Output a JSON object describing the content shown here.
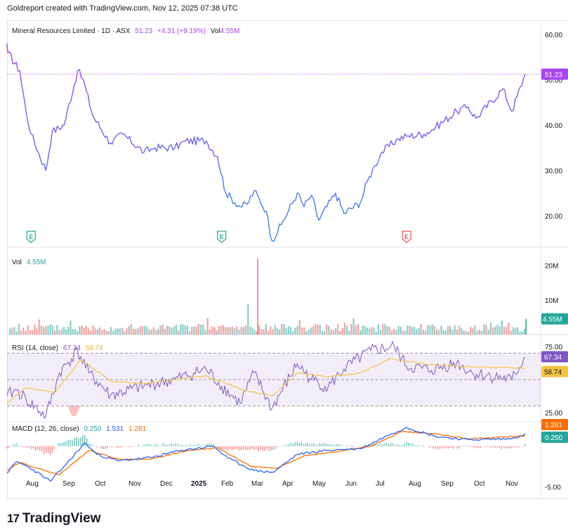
{
  "header": {
    "title": "Goldreport created with TradingView.com, Nov 12, 2025 07:38 UTC"
  },
  "brand": {
    "name": "TradingView",
    "logo_glyph": "17"
  },
  "colors": {
    "price_start": "#b33cf5",
    "price_end": "#2f8ee5",
    "last_price_bg": "#a845ef",
    "vol_up": "#26a69a",
    "vol_down": "#ef5350",
    "rsi_line": "#7e57c2",
    "rsi_ma": "#f6c343",
    "macd_line": "#2962ff",
    "signal_line": "#ff6d00",
    "earnings_teal": "#26a69a",
    "earnings_red": "#ef5350"
  },
  "main": {
    "legend": {
      "symbol": "Mineral Resources Limited · 1D · ASX",
      "price": "51.23",
      "change": "+4.31 (+9.19%)",
      "vol_label": "Vol",
      "vol_value": "4.55M"
    },
    "last_price_label": "51.23"
  },
  "volume": {
    "label": "Vol",
    "value": "4.55M",
    "axis_last": "4.55M"
  },
  "rsi": {
    "label": "RSI (14, close)",
    "value": "67.34",
    "ma_value": "58.74",
    "axis_rsi": "67.34",
    "axis_ma": "58.74"
  },
  "macd": {
    "label": "MACD (12, 26, close)",
    "hist_value": "0.250",
    "macd_value": "1.531",
    "signal_value": "1.281",
    "axis_signal": "1.281",
    "axis_hist": "0.250"
  },
  "chart_data": {
    "type": "line",
    "title": "Mineral Resources Limited · 1D · ASX",
    "x_labels": [
      "Aug",
      "Sep",
      "Oct",
      "Nov",
      "Dec",
      "2025",
      "Feb",
      "Mar",
      "Apr",
      "May",
      "Jun",
      "Jul",
      "Aug",
      "Sep",
      "Oct",
      "Nov"
    ],
    "price": {
      "ylim": [
        13,
        62
      ],
      "y_ticks": [
        "60.00",
        "50.00",
        "40.00",
        "30.00",
        "20.00"
      ],
      "y_tick_values": [
        60,
        50,
        40,
        30,
        20
      ],
      "series": [
        {
          "d": "Jul 22",
          "v": 58.0
        },
        {
          "d": "Jul 31",
          "v": 56.0
        },
        {
          "d": "Aug 10",
          "v": 52.0
        },
        {
          "d": "Aug 20",
          "v": 43.0
        },
        {
          "d": "Aug 28",
          "v": 38.0
        },
        {
          "d": "Sep 5",
          "v": 30.0
        },
        {
          "d": "Sep 12",
          "v": 38.5
        },
        {
          "d": "Sep 25",
          "v": 40.0
        },
        {
          "d": "Oct 1",
          "v": 52.0
        },
        {
          "d": "Oct 8",
          "v": 50.0
        },
        {
          "d": "Oct 20",
          "v": 42.0
        },
        {
          "d": "Nov 1",
          "v": 36.0
        },
        {
          "d": "Nov 15",
          "v": 38.0
        },
        {
          "d": "Dec 1",
          "v": 34.0
        },
        {
          "d": "Dec 15",
          "v": 35.0
        },
        {
          "d": "Jan 1",
          "v": 35.0
        },
        {
          "d": "Jan 15",
          "v": 36.5
        },
        {
          "d": "Feb 1",
          "v": 36.5
        },
        {
          "d": "Feb 15",
          "v": 33.0
        },
        {
          "d": "Feb 25",
          "v": 25.0
        },
        {
          "d": "Mar 5",
          "v": 22.0
        },
        {
          "d": "Mar 15",
          "v": 22.5
        },
        {
          "d": "Mar 25",
          "v": 25.5
        },
        {
          "d": "Apr 1",
          "v": 21.0
        },
        {
          "d": "Apr 8",
          "v": 14.5
        },
        {
          "d": "Apr 20",
          "v": 18.0
        },
        {
          "d": "May 1",
          "v": 25.0
        },
        {
          "d": "May 10",
          "v": 22.0
        },
        {
          "d": "May 20",
          "v": 24.5
        },
        {
          "d": "May 30",
          "v": 19.0
        },
        {
          "d": "Jun 10",
          "v": 25.0
        },
        {
          "d": "Jun 20",
          "v": 20.5
        },
        {
          "d": "Jul 1",
          "v": 23.0
        },
        {
          "d": "Jul 10",
          "v": 27.5
        },
        {
          "d": "Jul 20",
          "v": 31.0
        },
        {
          "d": "Jul 30",
          "v": 34.0
        },
        {
          "d": "Aug 10",
          "v": 37.0
        },
        {
          "d": "Aug 20",
          "v": 37.5
        },
        {
          "d": "Sep 1",
          "v": 38.0
        },
        {
          "d": "Sep 15",
          "v": 39.5
        },
        {
          "d": "Oct 1",
          "v": 43.0
        },
        {
          "d": "Oct 15",
          "v": 44.0
        },
        {
          "d": "Oct 25",
          "v": 41.5
        },
        {
          "d": "Nov 1",
          "v": 48.0
        },
        {
          "d": "Nov 5",
          "v": 43.0
        },
        {
          "d": "Nov 11",
          "v": 51.23
        }
      ],
      "earnings_markers": [
        {
          "d": "Aug 28",
          "label": "E",
          "kind": "teal"
        },
        {
          "d": "Feb 20",
          "label": "E",
          "kind": "teal"
        },
        {
          "d": "Aug 20",
          "label": "E",
          "kind": "red"
        }
      ]
    },
    "volume": {
      "y_ticks": [
        "20M",
        "10M"
      ],
      "y_tick_values": [
        20,
        10
      ],
      "ylim": [
        0,
        24
      ],
      "units": "M",
      "spike_high": 22.0,
      "spike_mid": 9.0,
      "typical": 2.5,
      "last": 4.55
    },
    "rsi": {
      "ylim": [
        18,
        82
      ],
      "y_ticks": [
        "75.00",
        "25.00"
      ],
      "y_tick_values": [
        75,
        25
      ],
      "band": [
        30,
        70
      ],
      "series": [
        {
          "d": "Jul 22",
          "v": 38
        },
        {
          "d": "Aug 5",
          "v": 42
        },
        {
          "d": "Aug 20",
          "v": 35
        },
        {
          "d": "Sep 5",
          "v": 22
        },
        {
          "d": "Sep 20",
          "v": 55
        },
        {
          "d": "Oct 1",
          "v": 72
        },
        {
          "d": "Oct 15",
          "v": 55
        },
        {
          "d": "Nov 1",
          "v": 38
        },
        {
          "d": "Dec 1",
          "v": 45
        },
        {
          "d": "Jan 1",
          "v": 50
        },
        {
          "d": "Feb 1",
          "v": 58
        },
        {
          "d": "Feb 20",
          "v": 45
        },
        {
          "d": "Mar 5",
          "v": 32
        },
        {
          "d": "Mar 25",
          "v": 55
        },
        {
          "d": "Apr 8",
          "v": 28
        },
        {
          "d": "May 1",
          "v": 62
        },
        {
          "d": "May 20",
          "v": 50
        },
        {
          "d": "Jun 1",
          "v": 44
        },
        {
          "d": "Jun 20",
          "v": 58
        },
        {
          "d": "Jul 15",
          "v": 72
        },
        {
          "d": "Aug 5",
          "v": 75
        },
        {
          "d": "Aug 20",
          "v": 60
        },
        {
          "d": "Sep 10",
          "v": 57
        },
        {
          "d": "Oct 1",
          "v": 63
        },
        {
          "d": "Oct 20",
          "v": 55
        },
        {
          "d": "Nov 5",
          "v": 50
        },
        {
          "d": "Nov 11",
          "v": 67.34
        }
      ],
      "ma_series": [
        {
          "d": "Jul 22",
          "v": 32
        },
        {
          "d": "Aug 20",
          "v": 44
        },
        {
          "d": "Sep 15",
          "v": 40
        },
        {
          "d": "Oct 5",
          "v": 65
        },
        {
          "d": "Nov 1",
          "v": 49
        },
        {
          "d": "Dec 1",
          "v": 47
        },
        {
          "d": "Jan 1",
          "v": 50
        },
        {
          "d": "Feb 1",
          "v": 53
        },
        {
          "d": "Mar 10",
          "v": 42
        },
        {
          "d": "Apr 10",
          "v": 38
        },
        {
          "d": "May 1",
          "v": 55
        },
        {
          "d": "Jun 1",
          "v": 52
        },
        {
          "d": "Jul 1",
          "v": 55
        },
        {
          "d": "Aug 1",
          "v": 66
        },
        {
          "d": "Sep 1",
          "v": 62
        },
        {
          "d": "Oct 1",
          "v": 60
        },
        {
          "d": "Nov 11",
          "v": 58.74
        }
      ]
    },
    "macd": {
      "ylim": [
        -6.5,
        3.0
      ],
      "y_ticks": [
        "-5.00"
      ],
      "y_tick_values": [
        -5
      ],
      "macd_series": [
        {
          "d": "Jul 22",
          "v": -3.3
        },
        {
          "d": "Aug 5",
          "v": -1.9
        },
        {
          "d": "Aug 25",
          "v": -2.6
        },
        {
          "d": "Sep 10",
          "v": -4.3
        },
        {
          "d": "Sep 25",
          "v": -2.5
        },
        {
          "d": "Oct 10",
          "v": 0.4
        },
        {
          "d": "Oct 25",
          "v": -1.0
        },
        {
          "d": "Nov 10",
          "v": -1.8
        },
        {
          "d": "Dec 10",
          "v": -1.4
        },
        {
          "d": "Jan 10",
          "v": -0.5
        },
        {
          "d": "Feb 10",
          "v": 0.0
        },
        {
          "d": "Feb 28",
          "v": -1.5
        },
        {
          "d": "Mar 25",
          "v": -3.0
        },
        {
          "d": "Apr 10",
          "v": -3.2
        },
        {
          "d": "May 1",
          "v": -1.0
        },
        {
          "d": "Jun 1",
          "v": -0.5
        },
        {
          "d": "Jul 1",
          "v": -0.3
        },
        {
          "d": "Aug 1",
          "v": 1.5
        },
        {
          "d": "Aug 20",
          "v": 2.3
        },
        {
          "d": "Sep 15",
          "v": 1.2
        },
        {
          "d": "Oct 15",
          "v": 0.8
        },
        {
          "d": "Nov 5",
          "v": 0.9
        },
        {
          "d": "Nov 11",
          "v": 1.531
        }
      ],
      "signal_series": [
        {
          "d": "Jul 22",
          "v": -3.0
        },
        {
          "d": "Aug 10",
          "v": -2.0
        },
        {
          "d": "Sep 1",
          "v": -2.9
        },
        {
          "d": "Sep 20",
          "v": -3.5
        },
        {
          "d": "Oct 15",
          "v": -0.5
        },
        {
          "d": "Nov 10",
          "v": -1.6
        },
        {
          "d": "Dec 10",
          "v": -1.6
        },
        {
          "d": "Jan 15",
          "v": -0.6
        },
        {
          "d": "Feb 15",
          "v": -0.2
        },
        {
          "d": "Mar 20",
          "v": -2.5
        },
        {
          "d": "Apr 15",
          "v": -2.7
        },
        {
          "d": "May 10",
          "v": -1.2
        },
        {
          "d": "Jun 15",
          "v": -0.6
        },
        {
          "d": "Jul 15",
          "v": 0.0
        },
        {
          "d": "Aug 15",
          "v": 1.8
        },
        {
          "d": "Sep 15",
          "v": 1.5
        },
        {
          "d": "Oct 15",
          "v": 0.9
        },
        {
          "d": "Nov 11",
          "v": 1.281
        }
      ]
    }
  }
}
